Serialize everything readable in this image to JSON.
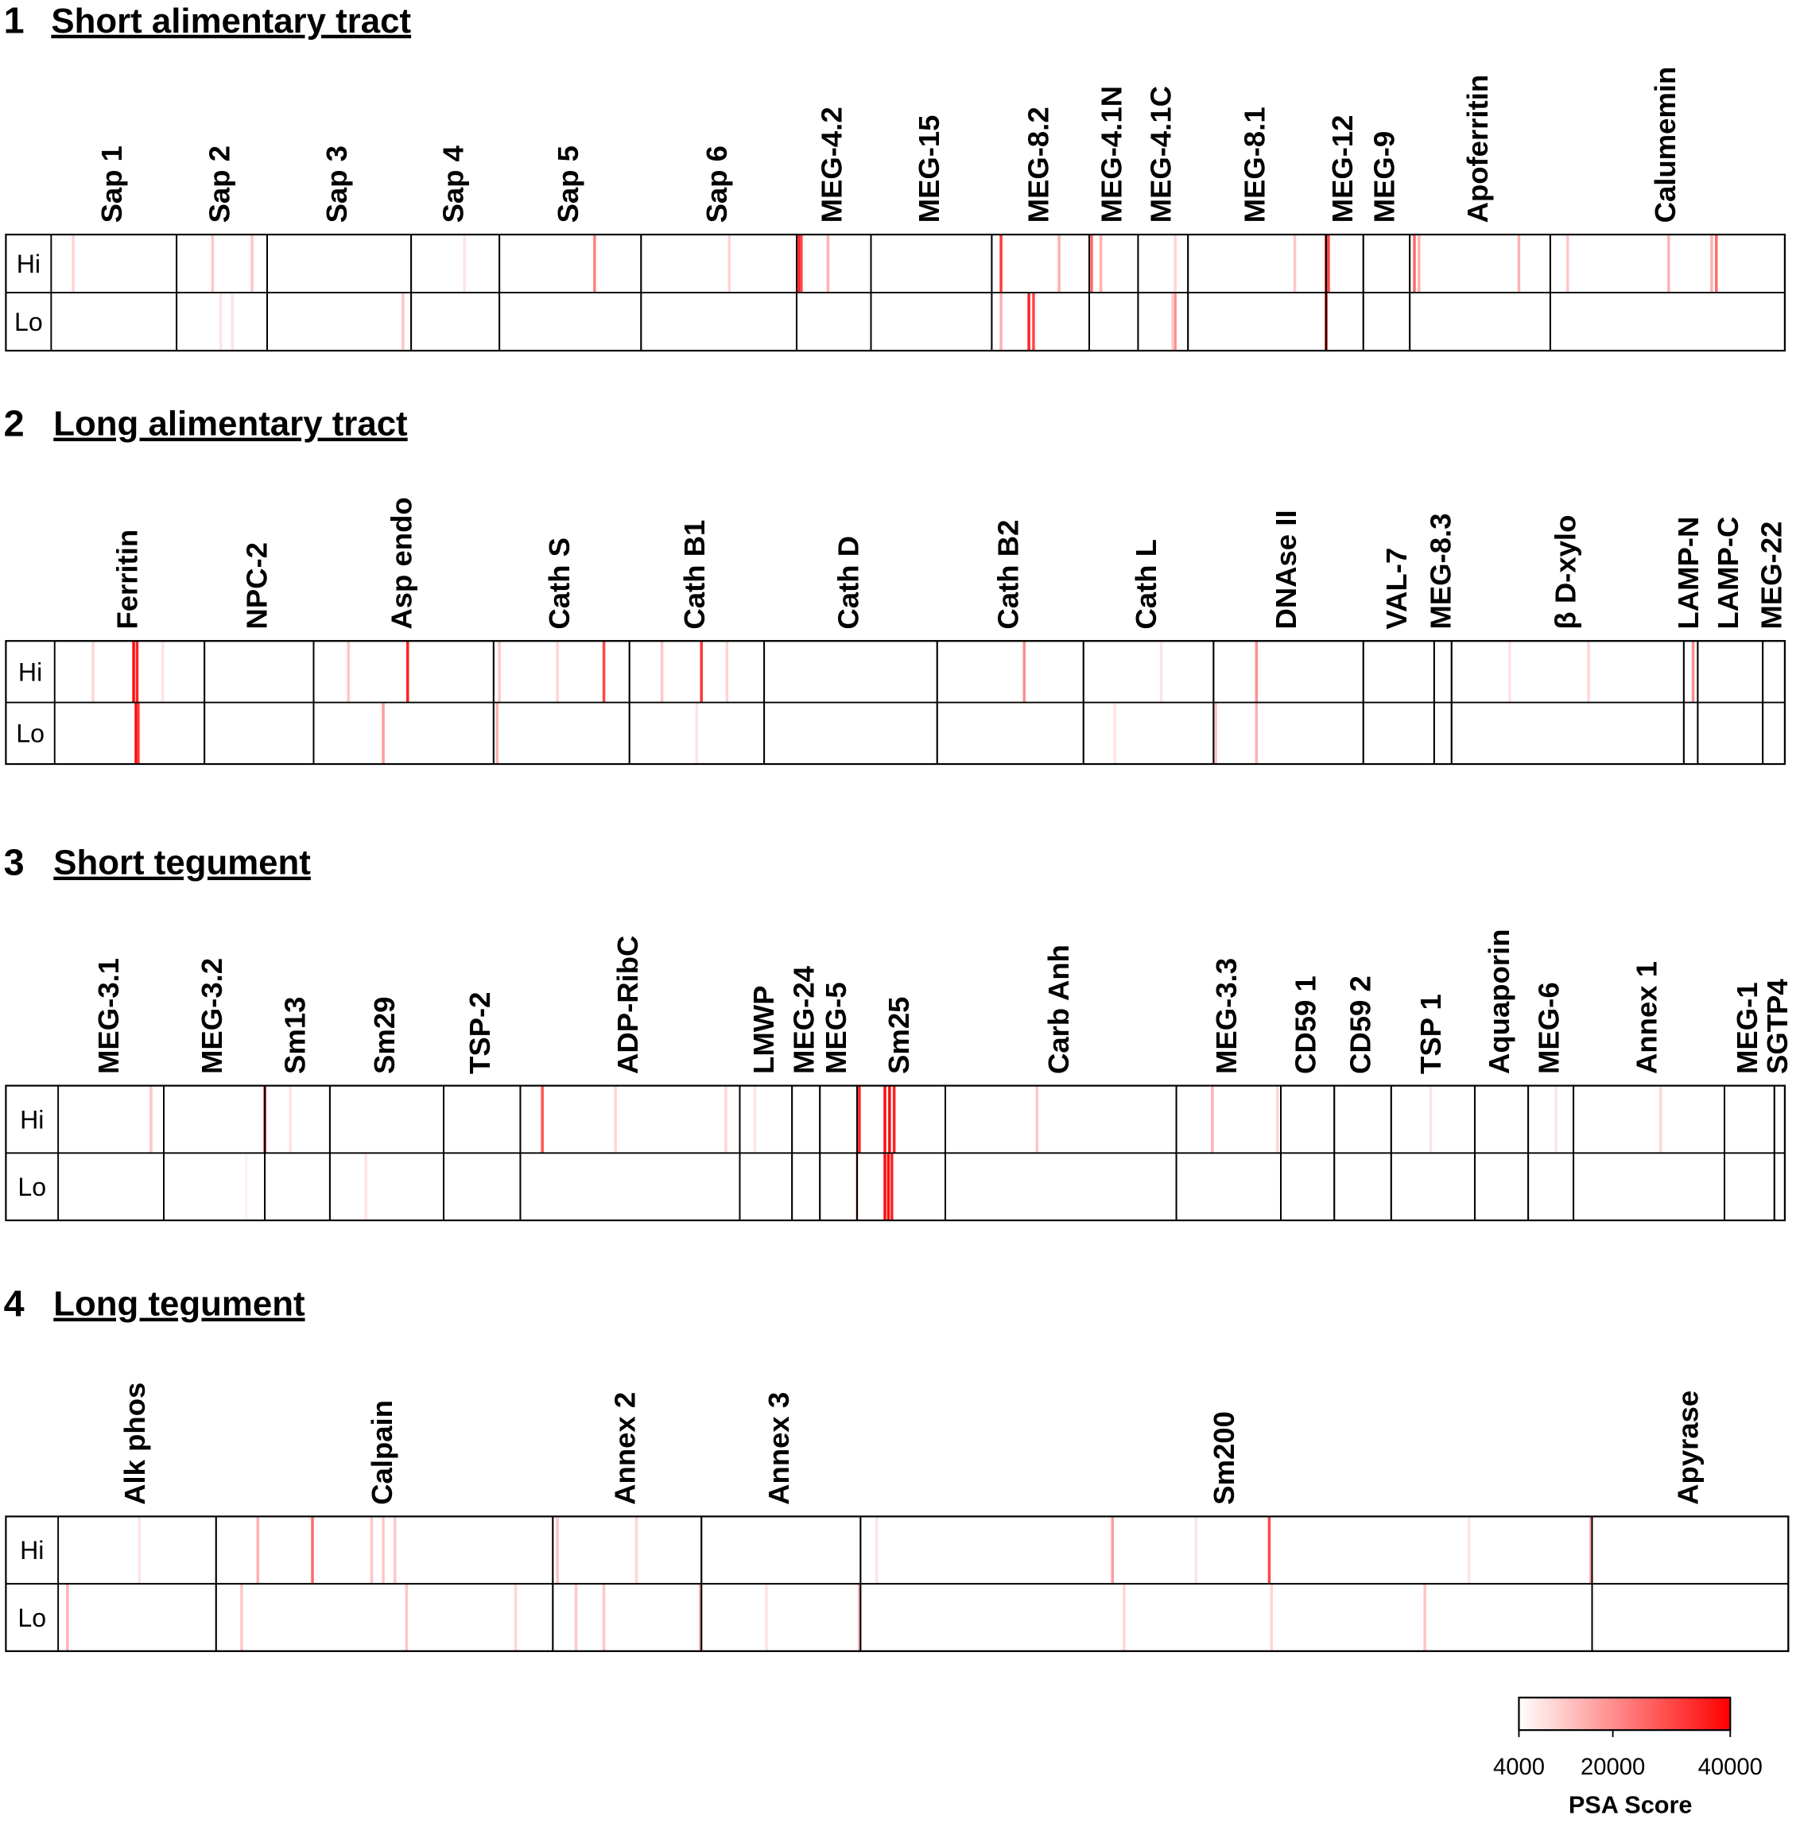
{
  "chart_data": {
    "type": "heatmap",
    "panels": [
      {
        "number": 1,
        "title": "Short alimentary tract",
        "rows": [
          "Hi",
          "Lo"
        ],
        "proteins": [
          {
            "name": "Sap 1",
            "length": 108
          },
          {
            "name": "Sap 2",
            "length": 78
          },
          {
            "name": "Sap 3",
            "length": 124
          },
          {
            "name": "Sap 4",
            "length": 76
          },
          {
            "name": "Sap 5",
            "length": 122
          },
          {
            "name": "Sap 6",
            "length": 134
          },
          {
            "name": "MEG-4.2",
            "length": 64
          },
          {
            "name": "MEG-15",
            "length": 104
          },
          {
            "name": "MEG-8.2",
            "length": 84
          },
          {
            "name": "MEG-4.1N",
            "length": 42
          },
          {
            "name": "MEG-4.1C",
            "length": 43
          },
          {
            "name": "MEG-8.1",
            "length": 119
          },
          {
            "name": "MEG-12",
            "length": 32
          },
          {
            "name": "MEG-9",
            "length": 40
          },
          {
            "name": "Apoferritin",
            "length": 121
          },
          {
            "name": "Calumemin",
            "length": 202
          }
        ],
        "hits": [
          [
            [
              644,
              35000
            ],
            [
              646,
              30000
            ],
            [
              669,
              15000
            ],
            [
              818,
              32000
            ],
            [
              868,
              15000
            ],
            [
              896,
              25000
            ],
            [
              904,
              15000
            ],
            [
              1098,
              38000
            ],
            [
              1100,
              30000
            ],
            [
              1174,
              25000
            ],
            [
              1178,
              15000
            ],
            [
              1264,
              15000
            ],
            [
              1393,
              15000
            ],
            [
              1434,
              25000
            ],
            [
              1430,
              15000
            ],
            [
              468,
              22000
            ],
            [
              139,
              12000
            ],
            [
              173,
              12000
            ],
            [
              1071,
              12000
            ],
            [
              1306,
              12000
            ],
            [
              19,
              10000
            ],
            [
              584,
              10000
            ],
            [
              968,
              10000
            ],
            [
              356,
              8000
            ]
          ],
          [
            [
              842,
              35000
            ],
            [
              846,
              30000
            ],
            [
              818,
              15000
            ],
            [
              1098,
              38000
            ],
            [
              968,
              20000
            ],
            [
              303,
              12000
            ],
            [
              156,
              8000
            ],
            [
              146,
              8000
            ],
            [
              966,
              12000
            ]
          ]
        ]
      },
      {
        "number": 2,
        "title": "Long alimentary tract",
        "rows": [
          "Hi",
          "Lo"
        ],
        "proteins": [
          {
            "name": "Ferritin",
            "length": 129
          },
          {
            "name": "NPC-2",
            "length": 94
          },
          {
            "name": "Asp endo",
            "length": 155
          },
          {
            "name": "Cath S",
            "length": 117
          },
          {
            "name": "Cath B1",
            "length": 116
          },
          {
            "name": "Cath D",
            "length": 149
          },
          {
            "name": "Cath B2",
            "length": 126
          },
          {
            "name": "Cath L",
            "length": 112
          },
          {
            "name": "DNAse II",
            "length": 129
          },
          {
            "name": "VAL-7",
            "length": 61
          },
          {
            "name": "MEG-8.3",
            "length": 15
          },
          {
            "name": "β D-xylo",
            "length": 200
          },
          {
            "name": "LAMP-N",
            "length": 12
          },
          {
            "name": "LAMP-C",
            "length": 56
          },
          {
            "name": "MEG-22",
            "length": 19
          }
        ],
        "hits": [
          [
            [
              68,
              38000
            ],
            [
              71,
              35000
            ],
            [
              304,
              35000
            ],
            [
              473,
              30000
            ],
            [
              557,
              32000
            ],
            [
              835,
              20000
            ],
            [
              1035,
              20000
            ],
            [
              253,
              12000
            ],
            [
              383,
              12000
            ],
            [
              433,
              10000
            ],
            [
              523,
              12000
            ],
            [
              579,
              10000
            ],
            [
              1411,
              20000
            ],
            [
              1253,
              8000
            ],
            [
              1321,
              10000
            ],
            [
              33,
              10000
            ],
            [
              93,
              8000
            ],
            [
              953,
              8000
            ]
          ],
          [
            [
              70,
              38000
            ],
            [
              72,
              32000
            ],
            [
              283,
              18000
            ],
            [
              381,
              15000
            ],
            [
              1035,
              15000
            ],
            [
              1000,
              12000
            ],
            [
              913,
              8000
            ],
            [
              553,
              8000
            ]
          ]
        ]
      },
      {
        "number": 3,
        "title": "Short tegument",
        "rows": [
          "Hi",
          "Lo"
        ],
        "proteins": [
          {
            "name": "MEG-3.1",
            "length": 91
          },
          {
            "name": "MEG-3.2",
            "length": 87
          },
          {
            "name": "Sm13",
            "length": 56
          },
          {
            "name": "Sm29",
            "length": 98
          },
          {
            "name": "TSP-2",
            "length": 66
          },
          {
            "name": "ADP-RibC",
            "length": 189
          },
          {
            "name": "LMWP",
            "length": 45
          },
          {
            "name": "MEG-24",
            "length": 24
          },
          {
            "name": "MEG-5",
            "length": 32
          },
          {
            "name": "Sm25",
            "length": 76
          },
          {
            "name": "Carb Anh",
            "length": 199
          },
          {
            "name": "MEG-3.3",
            "length": 90
          },
          {
            "name": "CD59 1",
            "length": 46
          },
          {
            "name": "CD59 2",
            "length": 49
          },
          {
            "name": "TSP 1",
            "length": 72
          },
          {
            "name": "Aquaporin",
            "length": 46
          },
          {
            "name": "MEG-6",
            "length": 39
          },
          {
            "name": "Annex 1",
            "length": 130
          },
          {
            "name": "MEG-1",
            "length": 43
          },
          {
            "name": "SGTP4",
            "length": 9
          }
        ],
        "hits": [
          [
            [
              178,
              34000
            ],
            [
              417,
              28000
            ],
            [
              690,
              35000
            ],
            [
              712,
              38000
            ],
            [
              716,
              38000
            ],
            [
              720,
              35000
            ],
            [
              80,
              12000
            ],
            [
              994,
              15000
            ],
            [
              843,
              12000
            ],
            [
              480,
              10000
            ],
            [
              575,
              10000
            ],
            [
              1182,
              8000
            ],
            [
              1380,
              10000
            ],
            [
              1290,
              8000
            ],
            [
              1050,
              10000
            ],
            [
              200,
              8000
            ],
            [
              600,
              8000
            ]
          ],
          [
            [
              712,
              38000
            ],
            [
              715,
              38000
            ],
            [
              718,
              35000
            ],
            [
              688,
              15000
            ],
            [
              265,
              8000
            ],
            [
              162,
              6000
            ]
          ]
        ]
      },
      {
        "number": 4,
        "title": "Long tegument",
        "rows": [
          "Hi",
          "Lo"
        ],
        "proteins": [
          {
            "name": "Alk phos",
            "length": 136
          },
          {
            "name": "Calpain",
            "length": 290
          },
          {
            "name": "Annex 2",
            "length": 128
          },
          {
            "name": "Annex 3",
            "length": 137
          },
          {
            "name": "Sm200",
            "length": 630
          },
          {
            "name": "Apyrase",
            "length": 169
          }
        ],
        "hits": [
          [
            [
              219,
              25000
            ],
            [
              1043,
              30000
            ],
            [
              908,
              18000
            ],
            [
              172,
              15000
            ],
            [
              270,
              12000
            ],
            [
              290,
              12000
            ],
            [
              1320,
              18000
            ],
            [
              280,
              12000
            ],
            [
              430,
              12000
            ],
            [
              498,
              10000
            ],
            [
              705,
              8000
            ],
            [
              980,
              8000
            ],
            [
              1215,
              8000
            ],
            [
              70,
              8000
            ]
          ],
          [
            [
              8,
              15000
            ],
            [
              158,
              12000
            ],
            [
              300,
              12000
            ],
            [
              394,
              10000
            ],
            [
              446,
              12000
            ],
            [
              470,
              12000
            ],
            [
              553,
              15000
            ],
            [
              690,
              15000
            ],
            [
              1177,
              12000
            ],
            [
              918,
              10000
            ],
            [
              1045,
              10000
            ],
            [
              610,
              8000
            ]
          ]
        ]
      }
    ],
    "colorbar": {
      "title": "PSA Score",
      "clim": [
        4000,
        40000
      ],
      "ticks": [
        4000,
        20000,
        40000
      ],
      "colors": [
        "#ffffff",
        "#ff0000"
      ]
    }
  }
}
